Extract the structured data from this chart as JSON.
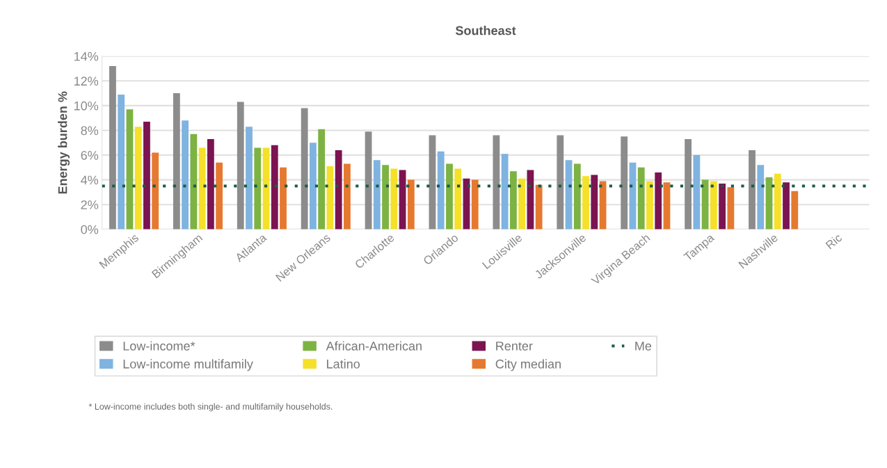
{
  "chart_data": {
    "type": "bar",
    "title": "Southeast",
    "ylabel": "Energy burden %",
    "categories": [
      "Memphis",
      "Birmingham",
      "Atlanta",
      "New Orleans",
      "Charlotte",
      "Orlando",
      "Louisville",
      "Jacksonville",
      "Virgina Beach",
      "Tampa",
      "Nashville",
      "Ric"
    ],
    "series": [
      {
        "name": "Low-income*",
        "color": "#8c8c8c",
        "values": [
          13.2,
          11.0,
          10.3,
          9.8,
          7.9,
          7.6,
          7.6,
          7.6,
          7.5,
          7.3,
          6.4,
          null
        ]
      },
      {
        "name": "Low-income multifamily",
        "color": "#7fb3e0",
        "values": [
          10.9,
          8.8,
          8.3,
          7.0,
          5.6,
          6.3,
          6.1,
          5.6,
          5.4,
          6.0,
          5.2,
          null
        ]
      },
      {
        "name": "African-American",
        "color": "#7cb342",
        "values": [
          9.7,
          7.7,
          6.6,
          8.1,
          5.2,
          5.3,
          4.7,
          5.3,
          5.0,
          4.0,
          4.2,
          null
        ]
      },
      {
        "name": "Latino",
        "color": "#f5e02a",
        "values": [
          8.3,
          6.6,
          6.6,
          5.1,
          4.9,
          4.9,
          4.1,
          4.3,
          3.9,
          3.9,
          4.5,
          null
        ]
      },
      {
        "name": "Renter",
        "color": "#7b1450",
        "values": [
          8.7,
          7.3,
          6.8,
          6.4,
          4.8,
          4.1,
          4.8,
          4.4,
          4.6,
          3.7,
          3.8,
          null
        ]
      },
      {
        "name": "City median",
        "color": "#e5792f",
        "values": [
          6.2,
          5.4,
          5.0,
          5.3,
          4.0,
          4.0,
          3.6,
          3.9,
          3.8,
          3.4,
          3.1,
          null
        ]
      }
    ],
    "ref_lines": [
      {
        "axis": "y",
        "value": 3.5,
        "label": "Me",
        "color": "#1a5c45",
        "line_style": "dotted"
      }
    ],
    "ylim": [
      0,
      14
    ],
    "yticks": [
      {
        "value": 0,
        "label": "0%"
      },
      {
        "value": 2,
        "label": "2%"
      },
      {
        "value": 4,
        "label": "4%"
      },
      {
        "value": 6,
        "label": "6%"
      },
      {
        "value": 8,
        "label": "8%"
      },
      {
        "value": 10,
        "label": "10%"
      },
      {
        "value": 12,
        "label": "12%"
      },
      {
        "value": 14,
        "label": "14%"
      }
    ],
    "grid": "y",
    "legend": "bottom",
    "annotations": [
      "* Low-income includes both single- and multifamily households."
    ]
  }
}
